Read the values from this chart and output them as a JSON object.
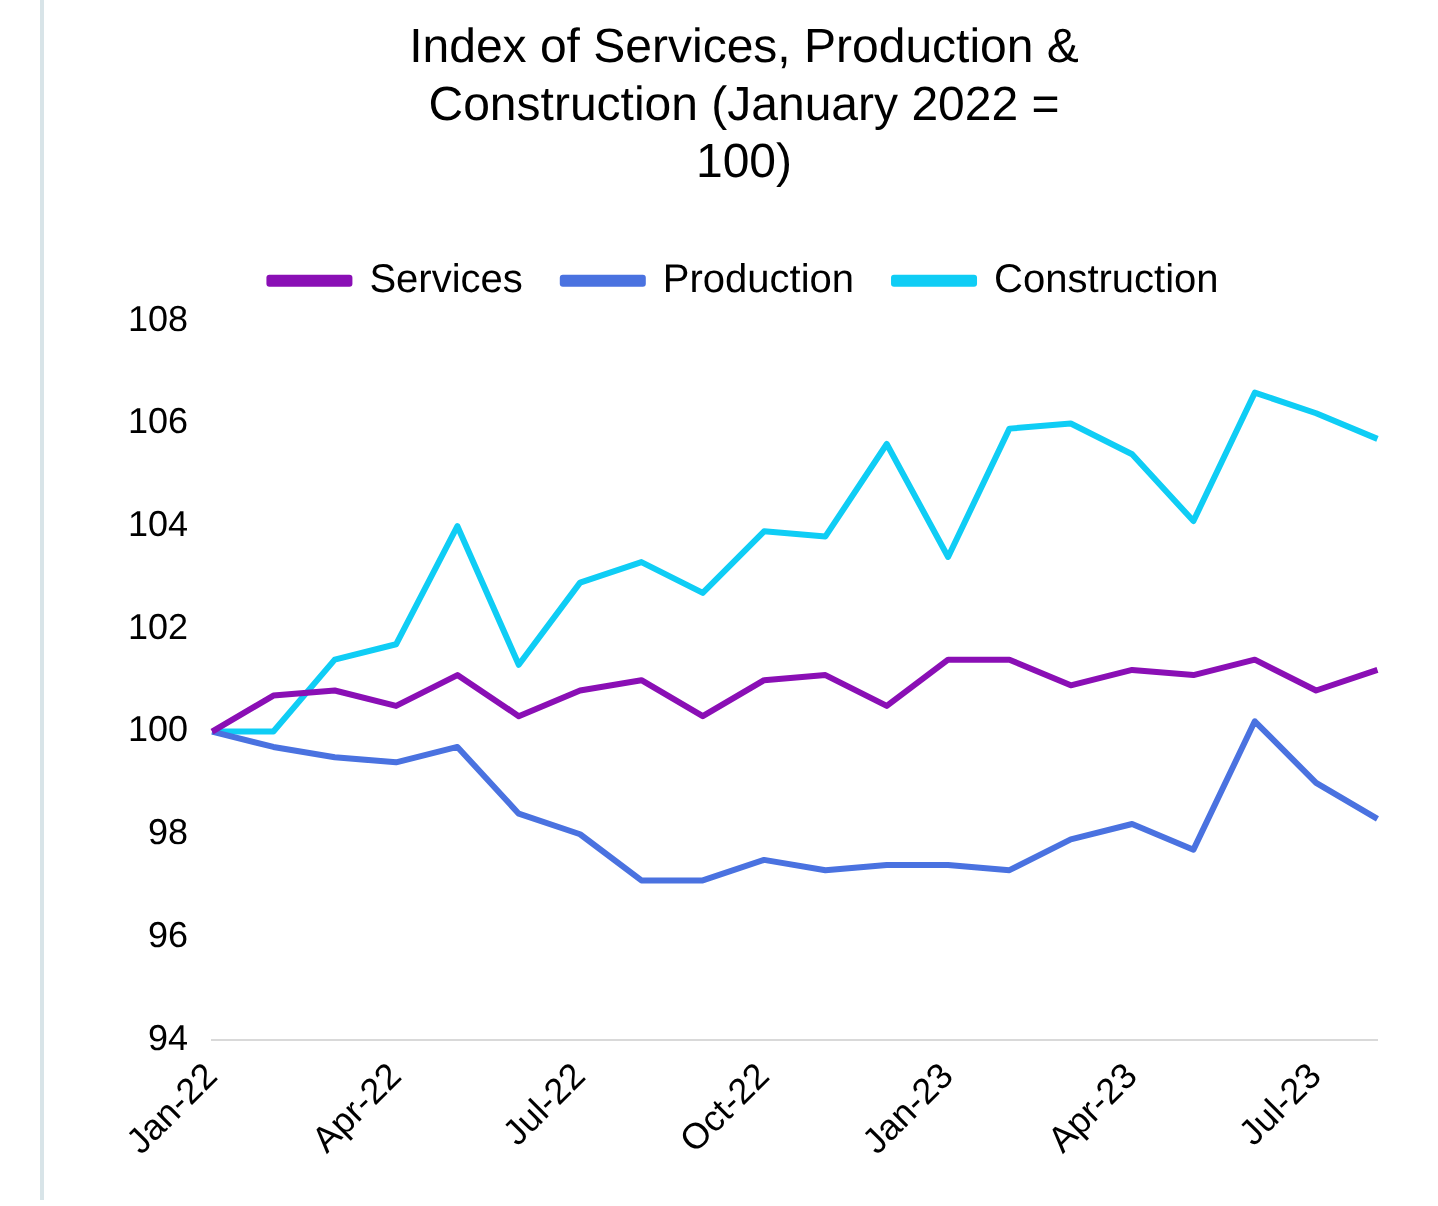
{
  "chart_data": {
    "type": "line",
    "title": "Index of Services, Production & Construction (January 2022 = 100)",
    "categories": [
      "Jan-22",
      null,
      null,
      "Apr-22",
      null,
      null,
      "Jul-22",
      null,
      null,
      "Oct-22",
      null,
      null,
      "Jan-23",
      null,
      null,
      "Apr-23",
      null,
      null,
      "Jul-23",
      null
    ],
    "series": [
      {
        "name": "Services",
        "color": "#8a0fb5",
        "values": [
          100,
          100.7,
          100.8,
          100.5,
          101.1,
          100.3,
          100.8,
          101,
          100.3,
          101,
          101.1,
          100.5,
          101.4,
          101.4,
          100.9,
          101.2,
          101.1,
          101.4,
          100.8,
          101.2
        ]
      },
      {
        "name": "Production",
        "color": "#4a72e0",
        "values": [
          100,
          99.7,
          99.5,
          99.4,
          99.7,
          98.4,
          98,
          97.1,
          97.1,
          97.5,
          97.3,
          97.4,
          97.4,
          97.3,
          97.9,
          98.2,
          97.7,
          100.2,
          99,
          98.3
        ]
      },
      {
        "name": "Construction",
        "color": "#0fcdf5",
        "values": [
          100,
          100,
          101.4,
          101.7,
          104,
          101.3,
          102.9,
          103.3,
          102.7,
          103.9,
          103.8,
          105.6,
          103.4,
          105.9,
          106,
          105.4,
          104.1,
          106.6,
          106.2,
          105.7
        ]
      }
    ],
    "ylim": [
      94,
      108
    ],
    "yticks": [
      94,
      96,
      98,
      100,
      102,
      104,
      106,
      108
    ],
    "grid": false,
    "legend": "top",
    "marker": "none",
    "line_style": "solid"
  }
}
